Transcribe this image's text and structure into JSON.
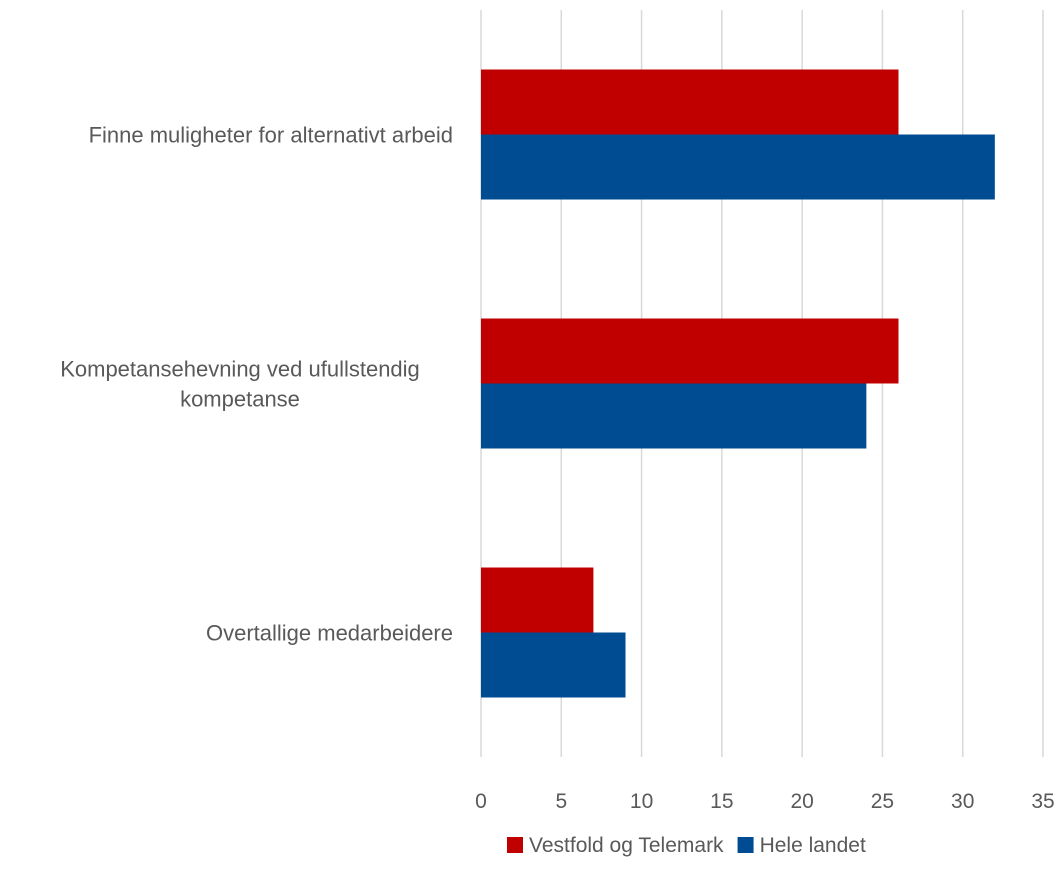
{
  "chart_data": {
    "type": "bar",
    "orientation": "horizontal",
    "categories": [
      [
        "Finne muligheter for alternativt arbeid"
      ],
      [
        "Kompetansehevning ved ufullstendig",
        "kompetanse"
      ],
      [
        "Overtallige medarbeidere"
      ]
    ],
    "series": [
      {
        "name": "Vestfold og Telemark",
        "color": "#C00000",
        "values": [
          26,
          26,
          7
        ]
      },
      {
        "name": "Hele landet",
        "color": "#004C93",
        "values": [
          32,
          24,
          9
        ]
      }
    ],
    "xlim": [
      0,
      35
    ],
    "xticks": [
      0,
      5,
      10,
      15,
      20,
      25,
      30,
      35
    ],
    "grid": "vertical",
    "legend_position": "bottom"
  }
}
